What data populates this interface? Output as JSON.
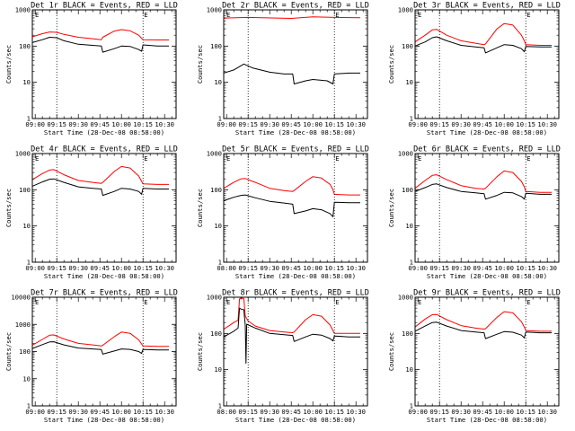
{
  "chart_data": [
    {
      "type": "line",
      "title": "Det 1r BLACK = Events, RED = LLD",
      "xlabel": "Start Time (28-Dec-08 08:58:00)",
      "ylabel": "Counts/sec",
      "yscale": "log",
      "ylim": [
        1,
        1000
      ],
      "x_ticks": [
        "09:00",
        "09:15",
        "09:30",
        "09:45",
        "10:00",
        "10:15",
        "10:30"
      ],
      "y_ticks": [
        "1",
        "10",
        "100",
        "1000"
      ],
      "markers": [
        "09:15",
        "10:15"
      ],
      "marker_labels": [
        "E",
        "E"
      ],
      "series": [
        {
          "color": "#ff0000",
          "x": [
            "08:58",
            "09:05",
            "09:10",
            "09:15",
            "09:20",
            "09:30",
            "09:40",
            "09:46",
            "09:47",
            "09:55",
            "10:00",
            "10:06",
            "10:12",
            "10:14",
            "10:15",
            "10:25",
            "10:33"
          ],
          "values": [
            180,
            220,
            245,
            240,
            210,
            175,
            160,
            150,
            175,
            260,
            285,
            265,
            200,
            165,
            150,
            148,
            148
          ]
        },
        {
          "color": "#000000",
          "x": [
            "08:58",
            "09:05",
            "09:10",
            "09:15",
            "09:20",
            "09:30",
            "09:40",
            "09:46",
            "09:47",
            "09:55",
            "10:00",
            "10:06",
            "10:12",
            "10:14",
            "10:15",
            "10:25",
            "10:33"
          ],
          "values": [
            125,
            150,
            175,
            170,
            140,
            112,
            105,
            100,
            68,
            85,
            100,
            98,
            80,
            72,
            108,
            100,
            100
          ]
        }
      ]
    },
    {
      "type": "line",
      "title": "Det 2r BLACK = Events, RED = LLD",
      "xlabel": "Start Time (28-Dec-08 08:58:00)",
      "ylabel": "Counts/sec",
      "yscale": "log",
      "ylim": [
        1,
        1000
      ],
      "x_ticks": [
        "09:00",
        "09:15",
        "09:30",
        "09:45",
        "10:00",
        "10:15",
        "10:30"
      ],
      "y_ticks": [
        "1",
        "10",
        "100",
        "1000"
      ],
      "markers": [
        "09:15",
        "10:15"
      ],
      "marker_labels": [
        "E",
        "E"
      ],
      "series": [
        {
          "color": "#ff0000",
          "x": [
            "08:58",
            "09:15",
            "09:45",
            "10:00",
            "10:15",
            "10:33"
          ],
          "values": [
            590,
            620,
            580,
            640,
            620,
            610
          ]
        },
        {
          "color": "#000000",
          "x": [
            "08:58",
            "09:05",
            "09:12",
            "09:18",
            "09:30",
            "09:40",
            "09:46",
            "09:47",
            "09:55",
            "10:00",
            "10:10",
            "10:14",
            "10:15",
            "10:25",
            "10:33"
          ],
          "values": [
            18,
            22,
            32,
            25,
            19,
            17,
            17,
            9,
            11,
            12,
            11,
            9,
            17,
            18,
            18
          ]
        }
      ]
    },
    {
      "type": "line",
      "title": "Det 3r BLACK = Events, RED = LLD",
      "xlabel": "Start Time (28-Dec-08 08:58:00)",
      "ylabel": "Counts/sec",
      "yscale": "log",
      "ylim": [
        1,
        1000
      ],
      "x_ticks": [
        "09:00",
        "09:15",
        "09:30",
        "09:45",
        "10:00",
        "10:15",
        "10:30"
      ],
      "y_ticks": [
        "1",
        "10",
        "100",
        "1000"
      ],
      "markers": [
        "09:15",
        "10:15"
      ],
      "marker_labels": [
        "E",
        "E"
      ],
      "series": [
        {
          "color": "#ff0000",
          "x": [
            "08:58",
            "09:05",
            "09:10",
            "09:13",
            "09:20",
            "09:30",
            "09:40",
            "09:46",
            "09:47",
            "09:55",
            "10:00",
            "10:06",
            "10:12",
            "10:14",
            "10:15",
            "10:25",
            "10:33"
          ],
          "values": [
            130,
            200,
            280,
            290,
            200,
            140,
            120,
            110,
            115,
            300,
            420,
            380,
            200,
            140,
            110,
            105,
            105
          ]
        },
        {
          "color": "#000000",
          "x": [
            "08:58",
            "09:05",
            "09:10",
            "09:13",
            "09:20",
            "09:30",
            "09:40",
            "09:46",
            "09:47",
            "09:55",
            "10:00",
            "10:06",
            "10:12",
            "10:14",
            "10:15",
            "10:25",
            "10:33"
          ],
          "values": [
            100,
            130,
            170,
            180,
            140,
            105,
            95,
            90,
            65,
            90,
            110,
            105,
            85,
            70,
            98,
            95,
            95
          ]
        }
      ]
    },
    {
      "type": "line",
      "title": "Det 4r BLACK = Events, RED = LLD",
      "xlabel": "Start Time (28-Dec-08 08:58:00)",
      "ylabel": "Counts/sec",
      "yscale": "log",
      "ylim": [
        1,
        1000
      ],
      "x_ticks": [
        "09:00",
        "09:15",
        "09:30",
        "09:45",
        "10:00",
        "10:15",
        "10:30"
      ],
      "y_ticks": [
        "1",
        "10",
        "100",
        "1000"
      ],
      "markers": [
        "09:15",
        "10:15"
      ],
      "marker_labels": [
        "E",
        "E"
      ],
      "series": [
        {
          "color": "#ff0000",
          "x": [
            "08:58",
            "09:05",
            "09:10",
            "09:13",
            "09:20",
            "09:30",
            "09:40",
            "09:46",
            "09:47",
            "09:55",
            "10:00",
            "10:06",
            "10:12",
            "10:14",
            "10:15",
            "10:25",
            "10:33"
          ],
          "values": [
            190,
            280,
            350,
            360,
            260,
            180,
            160,
            150,
            160,
            320,
            440,
            400,
            240,
            170,
            145,
            140,
            140
          ]
        },
        {
          "color": "#000000",
          "x": [
            "08:58",
            "09:05",
            "09:10",
            "09:13",
            "09:20",
            "09:30",
            "09:40",
            "09:46",
            "09:47",
            "09:55",
            "10:00",
            "10:06",
            "10:12",
            "10:14",
            "10:15",
            "10:25",
            "10:33"
          ],
          "values": [
            125,
            165,
            195,
            200,
            160,
            120,
            110,
            105,
            70,
            90,
            110,
            105,
            90,
            75,
            110,
            105,
            105
          ]
        }
      ]
    },
    {
      "type": "line",
      "title": "Det 5r BLACK = Events, RED = LLD",
      "xlabel": "Start Time (28-Dec-08 08:58:00)",
      "ylabel": "Counts/sec",
      "yscale": "log",
      "ylim": [
        1,
        1000
      ],
      "x_ticks": [
        "08:00",
        "09:15",
        "09:30",
        "09:45",
        "10:00",
        "10:15",
        "10:30"
      ],
      "y_ticks": [
        "1",
        "10",
        "100",
        "1000"
      ],
      "markers": [
        "09:15",
        "10:15"
      ],
      "marker_labels": [
        "E",
        "E"
      ],
      "series": [
        {
          "color": "#ff0000",
          "x": [
            "08:58",
            "09:05",
            "09:10",
            "09:13",
            "09:20",
            "09:30",
            "09:40",
            "09:46",
            "09:47",
            "09:55",
            "10:00",
            "10:06",
            "10:12",
            "10:14",
            "10:15",
            "10:25",
            "10:33"
          ],
          "values": [
            110,
            160,
            200,
            205,
            160,
            110,
            95,
            90,
            95,
            170,
            230,
            210,
            140,
            100,
            75,
            72,
            72
          ]
        },
        {
          "color": "#000000",
          "x": [
            "08:58",
            "09:05",
            "09:10",
            "09:13",
            "09:20",
            "09:30",
            "09:40",
            "09:46",
            "09:47",
            "09:55",
            "10:00",
            "10:06",
            "10:12",
            "10:14",
            "10:15",
            "10:25",
            "10:33"
          ],
          "values": [
            50,
            62,
            70,
            72,
            60,
            48,
            43,
            40,
            22,
            26,
            30,
            28,
            22,
            18,
            45,
            44,
            44
          ]
        }
      ]
    },
    {
      "type": "line",
      "title": "Det 6r BLACK = Events, RED = LLD",
      "xlabel": "Start Time (28-Dec-08 08:58:00)",
      "ylabel": "Counts/sec",
      "yscale": "log",
      "ylim": [
        1,
        1000
      ],
      "x_ticks": [
        "09:00",
        "09:15",
        "09:30",
        "09:45",
        "10:00",
        "10:15",
        "10:30"
      ],
      "y_ticks": [
        "1",
        "10",
        "100",
        "1000"
      ],
      "markers": [
        "09:15",
        "10:15"
      ],
      "marker_labels": [
        "E",
        "E"
      ],
      "series": [
        {
          "color": "#ff0000",
          "x": [
            "08:58",
            "09:05",
            "09:10",
            "09:13",
            "09:20",
            "09:30",
            "09:40",
            "09:46",
            "09:47",
            "09:55",
            "10:00",
            "10:06",
            "10:12",
            "10:14",
            "10:15",
            "10:25",
            "10:33"
          ],
          "values": [
            110,
            180,
            250,
            260,
            190,
            130,
            110,
            105,
            110,
            230,
            330,
            300,
            170,
            120,
            90,
            85,
            85
          ]
        },
        {
          "color": "#000000",
          "x": [
            "08:58",
            "09:05",
            "09:10",
            "09:13",
            "09:20",
            "09:30",
            "09:40",
            "09:46",
            "09:47",
            "09:55",
            "10:00",
            "10:06",
            "10:12",
            "10:14",
            "10:15",
            "10:25",
            "10:33"
          ],
          "values": [
            90,
            115,
            140,
            145,
            115,
            90,
            82,
            78,
            55,
            70,
            85,
            82,
            65,
            55,
            80,
            75,
            75
          ]
        }
      ]
    },
    {
      "type": "line",
      "title": "Det 7r BLACK = Events, RED = LLD",
      "xlabel": "Start Time (28-Dec-08 08:58:00)",
      "ylabel": "Counts/sec",
      "yscale": "log",
      "ylim": [
        1,
        10000
      ],
      "x_ticks": [
        "09:00",
        "09:15",
        "09:30",
        "09:45",
        "10:00",
        "10:15",
        "10:30"
      ],
      "y_ticks": [
        "1",
        "10",
        "100",
        "1000",
        "10000"
      ],
      "markers": [
        "09:15",
        "10:15"
      ],
      "marker_labels": [
        "E",
        "E"
      ],
      "series": [
        {
          "color": "#ff0000",
          "x": [
            "08:58",
            "09:05",
            "09:10",
            "09:13",
            "09:20",
            "09:30",
            "09:40",
            "09:46",
            "09:47",
            "09:55",
            "10:00",
            "10:06",
            "10:12",
            "10:14",
            "10:15",
            "10:25",
            "10:33"
          ],
          "values": [
            170,
            280,
            400,
            410,
            290,
            200,
            175,
            160,
            170,
            350,
            520,
            470,
            270,
            190,
            160,
            155,
            155
          ]
        },
        {
          "color": "#000000",
          "x": [
            "08:58",
            "09:05",
            "09:10",
            "09:13",
            "09:20",
            "09:30",
            "09:40",
            "09:46",
            "09:47",
            "09:55",
            "10:00",
            "10:06",
            "10:12",
            "10:14",
            "10:15",
            "10:25",
            "10:33"
          ],
          "values": [
            130,
            180,
            225,
            230,
            175,
            135,
            125,
            118,
            80,
            105,
            125,
            120,
            100,
            85,
            120,
            115,
            115
          ]
        }
      ]
    },
    {
      "type": "line",
      "title": "Det 8r BLACK = Events, RED = LLD",
      "xlabel": "Start Time (28-Dec-08 08:58:00)",
      "ylabel": "Counts/sec",
      "yscale": "log",
      "ylim": [
        1,
        1000
      ],
      "x_ticks": [
        "08:00",
        "09:15",
        "09:30",
        "09:45",
        "10:00",
        "10:15",
        "10:30"
      ],
      "y_ticks": [
        "1",
        "10",
        "100",
        "1000"
      ],
      "markers": [
        "09:15",
        "10:15"
      ],
      "marker_labels": [
        "E",
        "E"
      ],
      "series": [
        {
          "color": "#ff0000",
          "x": [
            "08:58",
            "09:05",
            "09:08",
            "09:09",
            "09:10",
            "09:12",
            "09:13",
            "09:15",
            "09:20",
            "09:30",
            "09:40",
            "09:46",
            "09:47",
            "09:55",
            "10:00",
            "10:06",
            "10:12",
            "10:14",
            "10:15",
            "10:25",
            "10:33"
          ],
          "values": [
            130,
            200,
            230,
            900,
            950,
            920,
            300,
            220,
            160,
            120,
            110,
            105,
            110,
            240,
            330,
            300,
            170,
            120,
            100,
            100,
            100
          ]
        },
        {
          "color": "#000000",
          "x": [
            "08:58",
            "09:05",
            "09:08",
            "09:09",
            "09:10",
            "09:12",
            "09:13",
            "09:13.5",
            "09:14",
            "09:20",
            "09:30",
            "09:40",
            "09:46",
            "09:47",
            "09:55",
            "10:00",
            "10:06",
            "10:12",
            "10:14",
            "10:15",
            "10:25",
            "10:33"
          ],
          "values": [
            80,
            115,
            140,
            500,
            470,
            450,
            170,
            15,
            180,
            140,
            100,
            92,
            88,
            60,
            80,
            95,
            90,
            72,
            62,
            85,
            80,
            80
          ]
        }
      ]
    },
    {
      "type": "line",
      "title": "Det 9r BLACK = Events, RED = LLD",
      "xlabel": "Start Time (28-Dec-08 08:58:00)",
      "ylabel": "Counts/sec",
      "yscale": "log",
      "ylim": [
        1,
        1000
      ],
      "x_ticks": [
        "09:00",
        "09:15",
        "09:30",
        "09:45",
        "10:00",
        "10:15",
        "10:30"
      ],
      "y_ticks": [
        "1",
        "10",
        "100",
        "1000"
      ],
      "markers": [
        "09:15",
        "10:15"
      ],
      "marker_labels": [
        "E",
        "E"
      ],
      "series": [
        {
          "color": "#ff0000",
          "x": [
            "08:58",
            "09:05",
            "09:10",
            "09:13",
            "09:20",
            "09:30",
            "09:40",
            "09:46",
            "09:47",
            "09:55",
            "10:00",
            "10:06",
            "10:12",
            "10:14",
            "10:15",
            "10:25",
            "10:33"
          ],
          "values": [
            150,
            250,
            330,
            335,
            240,
            165,
            140,
            132,
            135,
            280,
            400,
            370,
            210,
            150,
            120,
            115,
            115
          ]
        },
        {
          "color": "#000000",
          "x": [
            "08:58",
            "09:05",
            "09:10",
            "09:13",
            "09:20",
            "09:30",
            "09:40",
            "09:46",
            "09:47",
            "09:55",
            "10:00",
            "10:06",
            "10:12",
            "10:14",
            "10:15",
            "10:25",
            "10:33"
          ],
          "values": [
            115,
            160,
            200,
            205,
            160,
            120,
            110,
            104,
            72,
            95,
            112,
            108,
            90,
            75,
            110,
            104,
            104
          ]
        }
      ]
    }
  ]
}
